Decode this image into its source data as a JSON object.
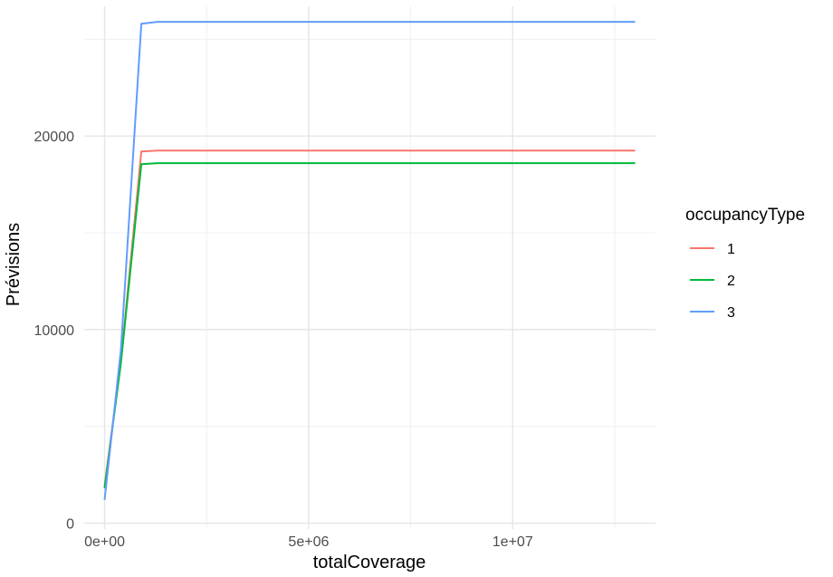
{
  "chart_data": {
    "type": "line",
    "xlabel": "totalCoverage",
    "ylabel": "Prévisions",
    "xlim": [
      -500000,
      13500000
    ],
    "ylim": [
      -300,
      26700
    ],
    "x_ticks": [
      {
        "value": 0,
        "label": "0e+00"
      },
      {
        "value": 5000000,
        "label": "5e+06"
      },
      {
        "value": 10000000,
        "label": "1e+07"
      }
    ],
    "x_minor": [
      2500000,
      7500000,
      12500000
    ],
    "y_ticks": [
      {
        "value": 0,
        "label": "0"
      },
      {
        "value": 10000,
        "label": "10000"
      },
      {
        "value": 20000,
        "label": "20000"
      }
    ],
    "y_minor": [
      5000,
      15000,
      25000
    ],
    "grid": true,
    "legend": {
      "title": "occupancyType",
      "position": "right"
    },
    "series": [
      {
        "name": "1",
        "color": "#F8766D",
        "x": [
          0,
          400000,
          900000,
          1300000,
          13000000
        ],
        "y": [
          1900,
          8400,
          19200,
          19250,
          19250
        ]
      },
      {
        "name": "2",
        "color": "#00BA38",
        "x": [
          0,
          400000,
          900000,
          1300000,
          13000000
        ],
        "y": [
          1800,
          8300,
          18550,
          18600,
          18600
        ]
      },
      {
        "name": "3",
        "color": "#619CFF",
        "x": [
          0,
          400000,
          900000,
          1300000,
          13000000
        ],
        "y": [
          1200,
          9000,
          25800,
          25900,
          25900
        ]
      }
    ]
  }
}
